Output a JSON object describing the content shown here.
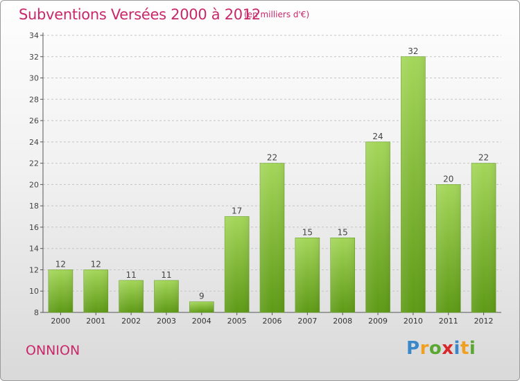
{
  "title": "Subventions Versées 2000 à 2012",
  "unit_note": "(en milliers d'€)",
  "commune": "ONNION",
  "logo": {
    "letters": [
      "P",
      "r",
      "o",
      "x",
      "i",
      "t",
      "i"
    ],
    "colors": [
      "#3a88c9",
      "#f0a020",
      "#5aa832",
      "#d8282c",
      "#3a88c9",
      "#f0a020",
      "#5aa832"
    ]
  },
  "colors": {
    "accent": "#c8286a",
    "bar_light": "#a4d65a",
    "bar_dark": "#5e9a16"
  },
  "chart_data": {
    "type": "bar",
    "title": "Subventions Versées 2000 à 2012",
    "subtitle": "(en milliers d'€)",
    "xlabel": "",
    "ylabel": "",
    "categories": [
      "2000",
      "2001",
      "2002",
      "2003",
      "2004",
      "2005",
      "2006",
      "2007",
      "2008",
      "2009",
      "2010",
      "2011",
      "2012"
    ],
    "values": [
      12,
      12,
      11,
      11,
      9,
      17,
      22,
      15,
      15,
      24,
      32,
      20,
      22
    ],
    "ylim": [
      8,
      34
    ],
    "yticks": [
      8,
      10,
      12,
      14,
      16,
      18,
      20,
      22,
      24,
      26,
      28,
      30,
      32,
      34
    ],
    "grid": "horizontal-dashed",
    "data_labels": true,
    "legend": "none"
  }
}
